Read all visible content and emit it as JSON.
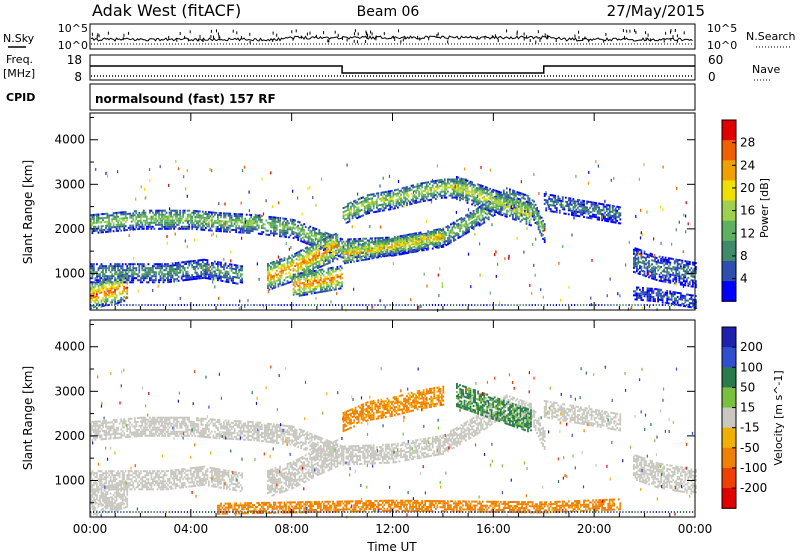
{
  "header": {
    "station": "Adak West (fitACF)",
    "beam": "Beam 06",
    "date": "27/May/2015"
  },
  "noise_panel": {
    "left_label": "N.Sky",
    "right_label": "N.Search",
    "left_ticks": [
      "10^5",
      "10^0"
    ],
    "right_ticks": [
      "10^5",
      "10^0"
    ]
  },
  "freq_panel": {
    "left_label": "Freq.",
    "left_units": "[MHz]",
    "right_label": "Nave",
    "left_ticks": [
      "18",
      "8"
    ],
    "right_ticks": [
      "60",
      "0"
    ]
  },
  "cpid": {
    "label": "CPID",
    "text": "normalsound (fast) 157 RF"
  },
  "colors": {
    "power": [
      "#0000ff",
      "#2f4fb0",
      "#3f8a6a",
      "#5fb060",
      "#a0d050",
      "#f0e000",
      "#f0a000",
      "#f06000",
      "#e00000"
    ],
    "velocity": [
      "#1f1fb0",
      "#2f4fd0",
      "#2a7a4a",
      "#7ac040",
      "#c8c8c0",
      "#f0b000",
      "#f08000",
      "#f04000",
      "#e00000"
    ]
  },
  "chart_data": [
    {
      "type": "heatmap",
      "title": "",
      "quantity": "Power",
      "xlabel": "",
      "ylabel": "Slant Range [km]",
      "x_ticks": [
        "00:00",
        "04:00",
        "08:00",
        "12:00",
        "16:00",
        "20:00",
        "00:00"
      ],
      "xlim_hours": [
        0,
        24
      ],
      "y_ticks": [
        1000,
        2000,
        3000,
        4000
      ],
      "ylim": [
        180,
        4600
      ],
      "colorbar": {
        "label": "Power [dB]",
        "ticks": [
          "4",
          "8",
          "12",
          "16",
          "20",
          "24",
          "28"
        ],
        "range": [
          0,
          30
        ]
      },
      "bands": [
        {
          "t": [
            0,
            2,
            4,
            5,
            6.5,
            8,
            10,
            12,
            14,
            15.5,
            16.5,
            17.5,
            18
          ],
          "r": [
            2100,
            2200,
            2200,
            2150,
            2100,
            2000,
            1550,
            1600,
            1800,
            2300,
            2700,
            2500,
            1900
          ],
          "w": 220,
          "p": 14
        },
        {
          "t": [
            0,
            1.5,
            3,
            4.5,
            6
          ],
          "r": [
            1000,
            1000,
            1000,
            1100,
            950
          ],
          "w": 220,
          "p": 10
        },
        {
          "t": [
            0,
            0.5,
            1,
            1.5
          ],
          "r": [
            450,
            550,
            600,
            700
          ],
          "w": 300,
          "p": 26
        },
        {
          "t": [
            7,
            8,
            9,
            9.8
          ],
          "r": [
            900,
            1100,
            1400,
            1600
          ],
          "w": 300,
          "p": 24
        },
        {
          "t": [
            8,
            9,
            10
          ],
          "r": [
            700,
            800,
            900
          ],
          "w": 250,
          "p": 25
        },
        {
          "t": [
            10,
            11,
            12,
            13,
            14,
            15
          ],
          "r": [
            2300,
            2550,
            2650,
            2800,
            2900,
            2900
          ],
          "w": 220,
          "p": 16
        },
        {
          "t": [
            10,
            11,
            12,
            13,
            14
          ],
          "r": [
            1400,
            1500,
            1600,
            1700,
            1800
          ],
          "w": 200,
          "p": 22
        },
        {
          "t": [
            14.5,
            15.5,
            16.5,
            17.5
          ],
          "r": [
            2900,
            2700,
            2500,
            2300
          ],
          "w": 250,
          "p": 18
        },
        {
          "t": [
            18,
            19,
            20,
            21
          ],
          "r": [
            2600,
            2500,
            2400,
            2300
          ],
          "w": 200,
          "p": 8
        },
        {
          "t": [
            21.5,
            22.5,
            23.5,
            24
          ],
          "r": [
            1300,
            1100,
            1000,
            950
          ],
          "w": 280,
          "p": 8
        },
        {
          "t": [
            21.5,
            22.5,
            23.5,
            24
          ],
          "r": [
            550,
            500,
            400,
            350
          ],
          "w": 150,
          "p": 6
        }
      ]
    },
    {
      "type": "heatmap",
      "title": "",
      "quantity": "Velocity",
      "xlabel": "Time UT",
      "ylabel": "Slant Range [km]",
      "x_ticks": [
        "00:00",
        "04:00",
        "08:00",
        "12:00",
        "16:00",
        "20:00",
        "00:00"
      ],
      "xlim_hours": [
        0,
        24
      ],
      "y_ticks": [
        1000,
        2000,
        3000,
        4000
      ],
      "ylim": [
        180,
        4600
      ],
      "colorbar": {
        "label": "Velocity [m s^-1]",
        "ticks": [
          "200",
          "100",
          "50",
          "15",
          "-15",
          "-50",
          "-100",
          "-200"
        ],
        "range": [
          -250,
          250
        ]
      },
      "bands": [
        {
          "t": [
            0,
            2,
            4,
            5,
            6.5,
            8,
            10,
            12,
            14,
            15.5,
            16.5,
            17.5,
            18
          ],
          "r": [
            2100,
            2200,
            2200,
            2150,
            2100,
            2000,
            1550,
            1600,
            1800,
            2300,
            2700,
            2500,
            1900
          ],
          "w": 220,
          "v": 0
        },
        {
          "t": [
            0,
            1.5,
            3,
            4.5,
            6
          ],
          "r": [
            1000,
            1000,
            1000,
            1100,
            950
          ],
          "w": 220,
          "v": 0
        },
        {
          "t": [
            0,
            0.5,
            1,
            1.5
          ],
          "r": [
            450,
            550,
            600,
            700
          ],
          "w": 300,
          "v": 0
        },
        {
          "t": [
            7,
            8,
            9,
            9.8
          ],
          "r": [
            900,
            1100,
            1400,
            1600
          ],
          "w": 300,
          "v": 0
        },
        {
          "t": [
            10,
            11,
            12,
            13,
            14
          ],
          "r": [
            2300,
            2550,
            2650,
            2800,
            2900
          ],
          "w": 220,
          "v": -40
        },
        {
          "t": [
            14.5,
            15.5,
            16.5,
            17.5
          ],
          "r": [
            2900,
            2700,
            2500,
            2300
          ],
          "w": 250,
          "v": 40
        },
        {
          "t": [
            18,
            19,
            20,
            21
          ],
          "r": [
            2600,
            2500,
            2400,
            2300
          ],
          "w": 200,
          "v": 0
        },
        {
          "t": [
            21.5,
            22.5,
            23.5,
            24
          ],
          "r": [
            1300,
            1100,
            1000,
            950
          ],
          "w": 280,
          "v": 0
        },
        {
          "t": [
            5,
            12,
            18,
            21
          ],
          "r": [
            350,
            420,
            380,
            450
          ],
          "w": 120,
          "v": -45
        }
      ]
    }
  ]
}
